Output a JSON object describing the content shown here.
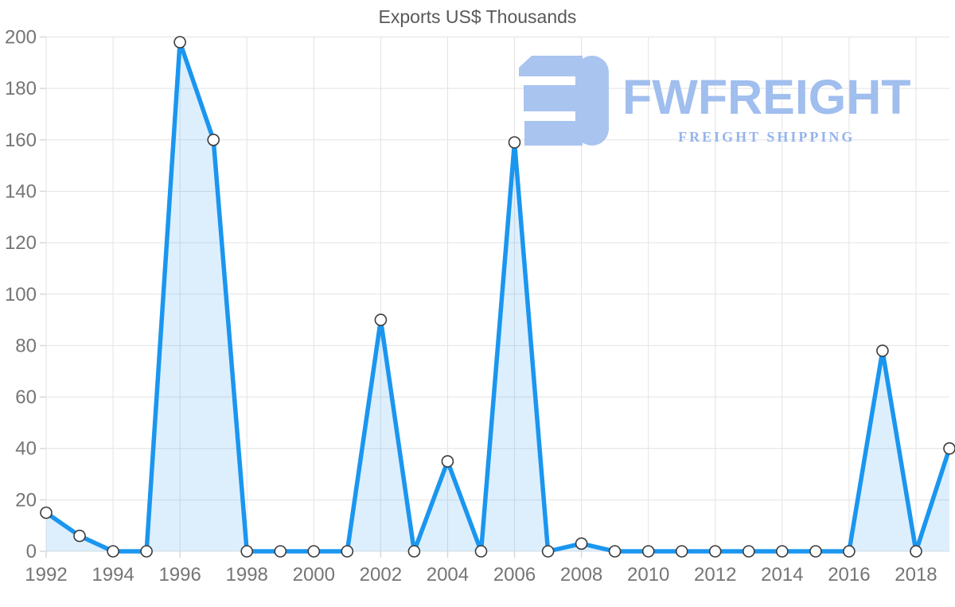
{
  "title": "Exports US$ Thousands",
  "watermark": {
    "brand": "FWFREIGHT",
    "tagline": "FREIGHT SHIPPING",
    "icon_color": "#aac4f0",
    "brand_color": "#a0beee",
    "tagline_color": "#96b4eb"
  },
  "colors": {
    "line": "#1b96ef",
    "area_fill": "rgba(24,149,239,0.15)",
    "marker_fill": "#ffffff",
    "marker_stroke": "#3b3b3b",
    "grid": "#e3e3e3",
    "tick": "#d8d8d8",
    "tick_text": "#757575",
    "title_text": "#58585a"
  },
  "chart_data": {
    "type": "area",
    "title": "Exports US$ Thousands",
    "x": [
      1992,
      1993,
      1994,
      1995,
      1996,
      1997,
      1998,
      1999,
      2000,
      2001,
      2002,
      2003,
      2004,
      2005,
      2006,
      2007,
      2008,
      2009,
      2010,
      2011,
      2012,
      2013,
      2014,
      2015,
      2016,
      2017,
      2018,
      2019
    ],
    "values": [
      15,
      6,
      0,
      0,
      198,
      160,
      0,
      0,
      0,
      0,
      90,
      0,
      35,
      0,
      159,
      0,
      3,
      0,
      0,
      0,
      0,
      0,
      0,
      0,
      0,
      78,
      0,
      40
    ],
    "xlabel": "",
    "ylabel": "",
    "ylim": [
      0,
      200
    ],
    "y_tick_step": 20,
    "x_tick_step": 2,
    "x_tick_labels": [
      "1992",
      "1994",
      "1996",
      "1998",
      "2000",
      "2002",
      "2004",
      "2006",
      "2008",
      "2010",
      "2012",
      "2014",
      "2016",
      "2018"
    ],
    "y_tick_labels": [
      "0",
      "20",
      "40",
      "60",
      "80",
      "100",
      "120",
      "140",
      "160",
      "180",
      "200"
    ],
    "grid": true,
    "legend": false,
    "markers": true
  }
}
